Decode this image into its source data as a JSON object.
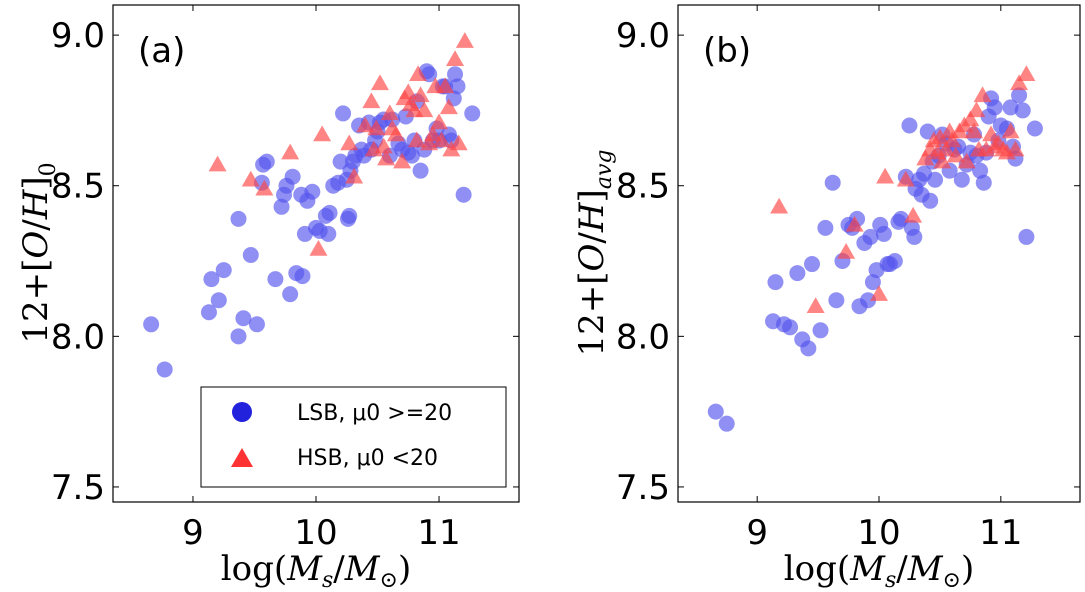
{
  "chart_data": [
    {
      "type": "scatter",
      "panel_label": "(a)",
      "xlabel": "log(M_s/M_⊙)",
      "ylabel": "12+[O/H]_0",
      "xlim": [
        8.35,
        11.65
      ],
      "ylim": [
        7.45,
        9.1
      ],
      "xticks": [
        "9",
        "10",
        "11"
      ],
      "yticks": [
        "7.5",
        "8.0",
        "8.5",
        "9.0"
      ],
      "legend": {
        "placement": "lower-right",
        "entries": [
          {
            "label": "LSB, μ0 >=20",
            "color": "#2222dd",
            "marker": "circle"
          },
          {
            "label": "HSB, μ0 <20",
            "color": "#ff3333",
            "marker": "triangle"
          }
        ]
      },
      "series": [
        {
          "name": "LSB, μ0 >=20",
          "marker": "circle",
          "color": "#5555ee",
          "points": [
            [
              8.66,
              8.04
            ],
            [
              8.77,
              7.89
            ],
            [
              9.13,
              8.08
            ],
            [
              9.15,
              8.19
            ],
            [
              9.21,
              8.12
            ],
            [
              9.25,
              8.22
            ],
            [
              9.37,
              8.39
            ],
            [
              9.37,
              8.0
            ],
            [
              9.41,
              8.06
            ],
            [
              9.47,
              8.27
            ],
            [
              9.52,
              8.04
            ],
            [
              9.56,
              8.51
            ],
            [
              9.57,
              8.57
            ],
            [
              9.6,
              8.58
            ],
            [
              9.67,
              8.19
            ],
            [
              9.72,
              8.43
            ],
            [
              9.74,
              8.47
            ],
            [
              9.76,
              8.5
            ],
            [
              9.79,
              8.14
            ],
            [
              9.81,
              8.53
            ],
            [
              9.84,
              8.21
            ],
            [
              9.89,
              8.2
            ],
            [
              9.88,
              8.47
            ],
            [
              9.91,
              8.34
            ],
            [
              9.93,
              8.45
            ],
            [
              9.97,
              8.48
            ],
            [
              10.0,
              8.36
            ],
            [
              10.03,
              8.35
            ],
            [
              10.08,
              8.4
            ],
            [
              10.1,
              8.34
            ],
            [
              10.11,
              8.41
            ],
            [
              10.14,
              8.5
            ],
            [
              10.18,
              8.51
            ],
            [
              10.2,
              8.58
            ],
            [
              10.22,
              8.74
            ],
            [
              10.25,
              8.52
            ],
            [
              10.26,
              8.39
            ],
            [
              10.27,
              8.4
            ],
            [
              10.28,
              8.55
            ],
            [
              10.3,
              8.58
            ],
            [
              10.32,
              8.6
            ],
            [
              10.35,
              8.7
            ],
            [
              10.37,
              8.62
            ],
            [
              10.39,
              8.6
            ],
            [
              10.43,
              8.71
            ],
            [
              10.45,
              8.62
            ],
            [
              10.48,
              8.65
            ],
            [
              10.5,
              8.68
            ],
            [
              10.52,
              8.71
            ],
            [
              10.55,
              8.72
            ],
            [
              10.6,
              8.6
            ],
            [
              10.62,
              8.72
            ],
            [
              10.67,
              8.64
            ],
            [
              10.7,
              8.62
            ],
            [
              10.73,
              8.73
            ],
            [
              10.75,
              8.61
            ],
            [
              10.78,
              8.6
            ],
            [
              10.8,
              8.65
            ],
            [
              10.82,
              8.78
            ],
            [
              10.85,
              8.55
            ],
            [
              10.88,
              8.62
            ],
            [
              10.9,
              8.88
            ],
            [
              10.92,
              8.87
            ],
            [
              10.95,
              8.65
            ],
            [
              10.98,
              8.69
            ],
            [
              11.0,
              8.65
            ],
            [
              11.03,
              8.83
            ],
            [
              11.05,
              8.83
            ],
            [
              11.08,
              8.67
            ],
            [
              11.1,
              8.65
            ],
            [
              11.12,
              8.79
            ],
            [
              11.13,
              8.87
            ],
            [
              11.15,
              8.83
            ],
            [
              11.2,
              8.47
            ],
            [
              11.27,
              8.74
            ]
          ]
        },
        {
          "name": "HSB, μ0 <20",
          "marker": "triangle",
          "color": "#ff4444",
          "points": [
            [
              9.2,
              8.57
            ],
            [
              9.47,
              8.52
            ],
            [
              9.58,
              8.49
            ],
            [
              9.79,
              8.61
            ],
            [
              10.02,
              8.29
            ],
            [
              10.05,
              8.67
            ],
            [
              10.27,
              8.64
            ],
            [
              10.31,
              8.53
            ],
            [
              10.4,
              8.7
            ],
            [
              10.45,
              8.78
            ],
            [
              10.47,
              8.62
            ],
            [
              10.49,
              8.69
            ],
            [
              10.52,
              8.84
            ],
            [
              10.55,
              8.63
            ],
            [
              10.57,
              8.59
            ],
            [
              10.6,
              8.74
            ],
            [
              10.62,
              8.69
            ],
            [
              10.65,
              8.67
            ],
            [
              10.7,
              8.58
            ],
            [
              10.72,
              8.79
            ],
            [
              10.75,
              8.81
            ],
            [
              10.77,
              8.77
            ],
            [
              10.8,
              8.75
            ],
            [
              10.82,
              8.65
            ],
            [
              10.83,
              8.87
            ],
            [
              10.85,
              8.8
            ],
            [
              10.88,
              8.75
            ],
            [
              10.92,
              8.64
            ],
            [
              10.95,
              8.67
            ],
            [
              10.97,
              8.83
            ],
            [
              11.0,
              8.71
            ],
            [
              11.02,
              8.65
            ],
            [
              11.05,
              8.83
            ],
            [
              11.08,
              8.76
            ],
            [
              11.1,
              8.62
            ],
            [
              11.13,
              8.92
            ],
            [
              11.16,
              8.64
            ],
            [
              11.21,
              8.98
            ]
          ]
        }
      ]
    },
    {
      "type": "scatter",
      "panel_label": "(b)",
      "xlabel": "log(M_s/M_⊙)",
      "ylabel": "12+[O/H]_avg",
      "xlim": [
        8.35,
        11.65
      ],
      "ylim": [
        7.45,
        9.1
      ],
      "xticks": [
        "9",
        "10",
        "11"
      ],
      "yticks": [
        "7.5",
        "8.0",
        "8.5",
        "9.0"
      ],
      "series": [
        {
          "name": "LSB, μ0 >=20",
          "marker": "circle",
          "color": "#5555ee",
          "points": [
            [
              8.66,
              7.75
            ],
            [
              8.75,
              7.71
            ],
            [
              9.13,
              8.05
            ],
            [
              9.15,
              8.18
            ],
            [
              9.22,
              8.04
            ],
            [
              9.27,
              8.03
            ],
            [
              9.33,
              8.21
            ],
            [
              9.37,
              7.99
            ],
            [
              9.42,
              7.96
            ],
            [
              9.45,
              8.24
            ],
            [
              9.52,
              8.02
            ],
            [
              9.56,
              8.36
            ],
            [
              9.62,
              8.51
            ],
            [
              9.65,
              8.12
            ],
            [
              9.7,
              8.25
            ],
            [
              9.75,
              8.37
            ],
            [
              9.78,
              8.36
            ],
            [
              9.82,
              8.39
            ],
            [
              9.84,
              8.1
            ],
            [
              9.88,
              8.31
            ],
            [
              9.91,
              8.12
            ],
            [
              9.93,
              8.33
            ],
            [
              9.95,
              8.18
            ],
            [
              9.98,
              8.22
            ],
            [
              10.01,
              8.37
            ],
            [
              10.04,
              8.34
            ],
            [
              10.07,
              8.24
            ],
            [
              10.09,
              8.24
            ],
            [
              10.13,
              8.25
            ],
            [
              10.16,
              8.38
            ],
            [
              10.18,
              8.39
            ],
            [
              10.22,
              8.53
            ],
            [
              10.25,
              8.7
            ],
            [
              10.27,
              8.36
            ],
            [
              10.29,
              8.33
            ],
            [
              10.3,
              8.49
            ],
            [
              10.33,
              8.52
            ],
            [
              10.35,
              8.47
            ],
            [
              10.37,
              8.54
            ],
            [
              10.4,
              8.68
            ],
            [
              10.42,
              8.45
            ],
            [
              10.44,
              8.58
            ],
            [
              10.46,
              8.52
            ],
            [
              10.49,
              8.6
            ],
            [
              10.52,
              8.67
            ],
            [
              10.55,
              8.64
            ],
            [
              10.58,
              8.55
            ],
            [
              10.62,
              8.62
            ],
            [
              10.65,
              8.63
            ],
            [
              10.68,
              8.52
            ],
            [
              10.72,
              8.57
            ],
            [
              10.75,
              8.61
            ],
            [
              10.78,
              8.67
            ],
            [
              10.8,
              8.6
            ],
            [
              10.83,
              8.55
            ],
            [
              10.86,
              8.51
            ],
            [
              10.88,
              8.61
            ],
            [
              10.9,
              8.73
            ],
            [
              10.92,
              8.79
            ],
            [
              10.95,
              8.76
            ],
            [
              10.98,
              8.65
            ],
            [
              11.0,
              8.7
            ],
            [
              11.05,
              8.69
            ],
            [
              11.08,
              8.76
            ],
            [
              11.1,
              8.63
            ],
            [
              11.12,
              8.59
            ],
            [
              11.15,
              8.8
            ],
            [
              11.18,
              8.75
            ],
            [
              11.21,
              8.33
            ],
            [
              11.28,
              8.69
            ]
          ]
        },
        {
          "name": "HSB, μ0 <20",
          "marker": "triangle",
          "color": "#ff4444",
          "points": [
            [
              9.18,
              8.43
            ],
            [
              9.48,
              8.1
            ],
            [
              9.73,
              8.28
            ],
            [
              9.8,
              8.37
            ],
            [
              10.0,
              8.14
            ],
            [
              10.05,
              8.53
            ],
            [
              10.22,
              8.52
            ],
            [
              10.28,
              8.4
            ],
            [
              10.38,
              8.59
            ],
            [
              10.42,
              8.62
            ],
            [
              10.45,
              8.65
            ],
            [
              10.48,
              8.61
            ],
            [
              10.5,
              8.66
            ],
            [
              10.52,
              8.58
            ],
            [
              10.55,
              8.62
            ],
            [
              10.58,
              8.68
            ],
            [
              10.6,
              8.65
            ],
            [
              10.63,
              8.6
            ],
            [
              10.66,
              8.68
            ],
            [
              10.7,
              8.7
            ],
            [
              10.72,
              8.58
            ],
            [
              10.75,
              8.72
            ],
            [
              10.78,
              8.68
            ],
            [
              10.8,
              8.75
            ],
            [
              10.82,
              8.62
            ],
            [
              10.85,
              8.8
            ],
            [
              10.88,
              8.62
            ],
            [
              10.92,
              8.67
            ],
            [
              10.95,
              8.63
            ],
            [
              10.98,
              8.64
            ],
            [
              11.02,
              8.62
            ],
            [
              11.05,
              8.61
            ],
            [
              11.08,
              8.68
            ],
            [
              11.12,
              8.62
            ],
            [
              11.15,
              8.84
            ],
            [
              11.21,
              8.87
            ]
          ]
        }
      ]
    }
  ]
}
